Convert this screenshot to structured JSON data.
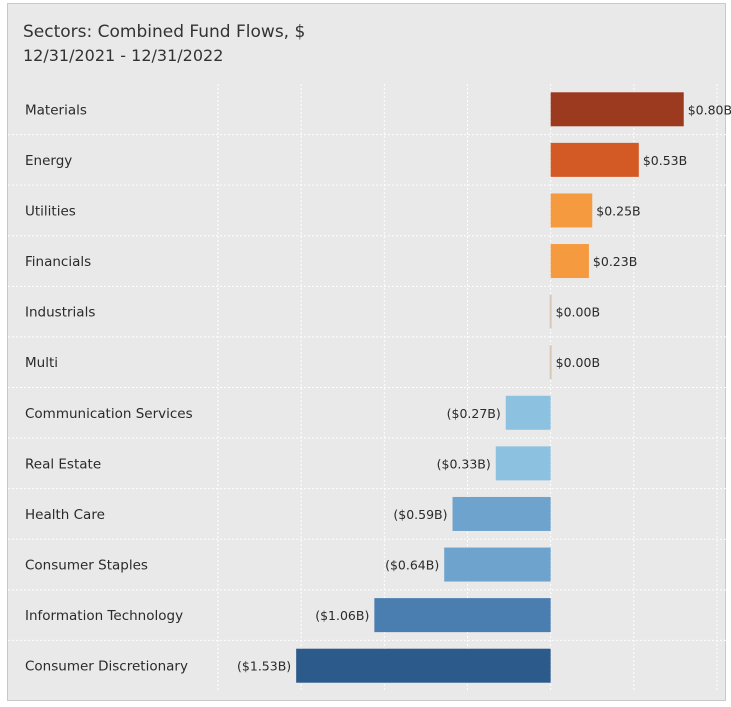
{
  "title": "Sectors:  Combined Fund Flows, $",
  "subtitle": "12/31/2021 - 12/31/2022",
  "chart_data": {
    "type": "bar",
    "orientation": "horizontal",
    "title": "Sectors:  Combined Fund Flows, $",
    "subtitle": "12/31/2021 - 12/31/2022",
    "xlabel": "",
    "ylabel": "",
    "xlim": [
      -2.0,
      1.0
    ],
    "grid": true,
    "categories": [
      "Materials",
      "Energy",
      "Utilities",
      "Financials",
      "Industrials",
      "Multi",
      "Communication Services",
      "Real Estate",
      "Health Care",
      "Consumer Staples",
      "Information Technology",
      "Consumer Discretionary"
    ],
    "values": [
      0.8,
      0.53,
      0.25,
      0.23,
      0.0,
      0.0,
      -0.27,
      -0.33,
      -0.59,
      -0.64,
      -1.06,
      -1.53
    ],
    "value_labels": [
      "$0.80B",
      "$0.53B",
      "$0.25B",
      "$0.23B",
      "$0.00B",
      "$0.00B",
      "($0.27B)",
      "($0.33B)",
      "($0.59B)",
      "($0.64B)",
      "($1.06B)",
      "($1.53B)"
    ],
    "colors": [
      "#9b3a1e",
      "#d45a25",
      "#f59a3f",
      "#f59a3f",
      "#d8c8b8",
      "#d8c8b8",
      "#8cc1df",
      "#8cc1df",
      "#6ea3cd",
      "#6ea3cd",
      "#4a7db0",
      "#2c5a8a"
    ]
  }
}
